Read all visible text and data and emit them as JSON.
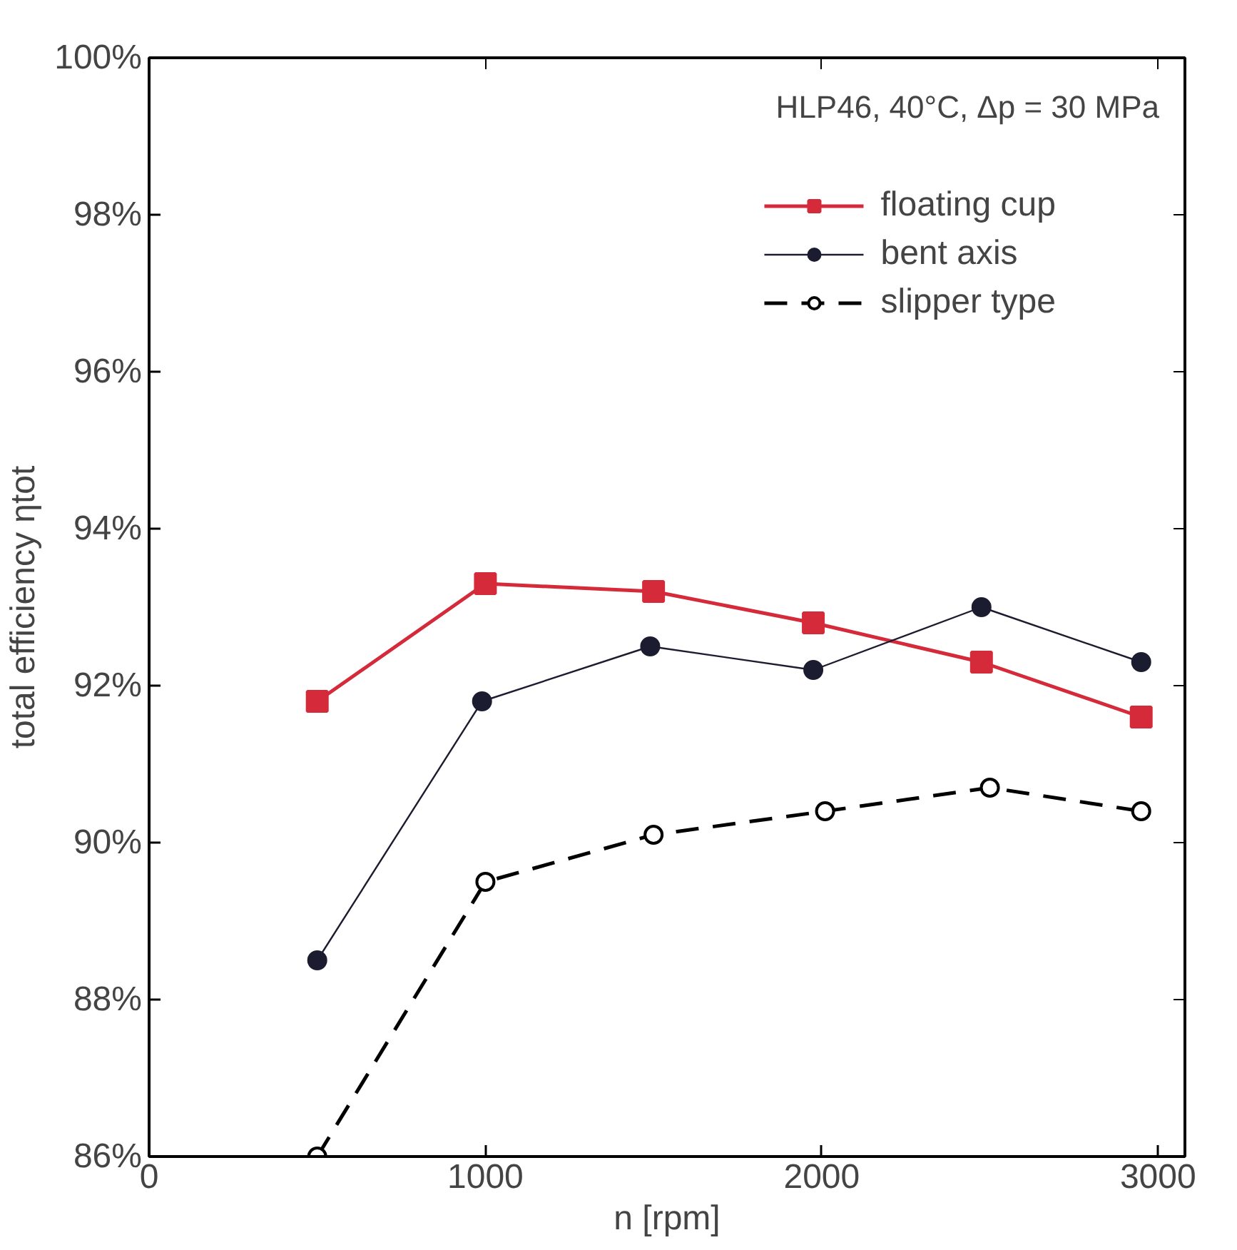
{
  "chart_data": {
    "type": "line",
    "xlabel": "n [rpm]",
    "ylabel": "total efficiency ηtot",
    "annotations": [
      "HLP46, 40°C, Δp = 30 MPa"
    ],
    "xlim": [
      0,
      3080
    ],
    "xticks": [
      0,
      1000,
      2000,
      3000
    ],
    "ylim": [
      86,
      100
    ],
    "yticks": [
      {
        "value": 86,
        "label": "86%"
      },
      {
        "value": 88,
        "label": "88%"
      },
      {
        "value": 90,
        "label": "90%"
      },
      {
        "value": 92,
        "label": "92%"
      },
      {
        "value": 94,
        "label": "94%"
      },
      {
        "value": 96,
        "label": "96%"
      },
      {
        "value": 98,
        "label": "98%"
      },
      {
        "value": 100,
        "label": "100%"
      }
    ],
    "grid": false,
    "legend": "top right",
    "series": [
      {
        "name": "floating cup",
        "color": "#d42a3a",
        "marker": "square",
        "line_style": "solid",
        "x": [
          500,
          1000,
          1500,
          1975,
          2475,
          2950
        ],
        "values": [
          91.8,
          93.3,
          93.2,
          92.8,
          92.3,
          91.6
        ]
      },
      {
        "name": "bent axis",
        "color": "#1c1c30",
        "marker": "circle",
        "line_style": "solid",
        "x": [
          500,
          990,
          1490,
          1975,
          2475,
          2950
        ],
        "values": [
          88.5,
          91.8,
          92.5,
          92.2,
          93.0,
          92.3
        ]
      },
      {
        "name": "slipper type",
        "color": "#000000",
        "marker": "circle",
        "line_style": "dashed",
        "x": [
          500,
          1000,
          1500,
          2010,
          2500,
          2950
        ],
        "values": [
          86.0,
          89.5,
          90.1,
          90.4,
          90.7,
          90.4
        ]
      }
    ]
  }
}
